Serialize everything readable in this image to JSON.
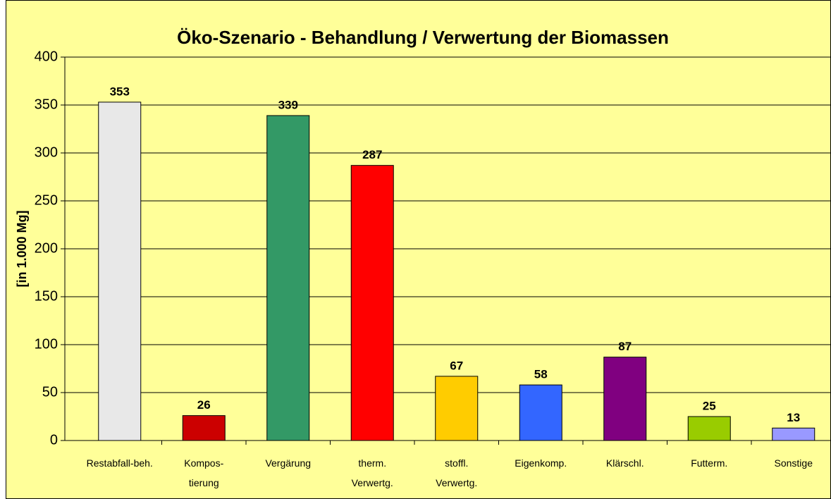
{
  "chart_data": {
    "type": "bar",
    "title": "Öko-Szenario -  Behandlung / Verwertung der Biomassen",
    "y_label": "[in 1.000 Mg]",
    "categories": [
      [
        "Restabfall-beh."
      ],
      [
        "Kompos-",
        "tierung"
      ],
      [
        "Vergärung"
      ],
      [
        "therm.",
        "Verwertg."
      ],
      [
        "stoffl.",
        "Verwertg."
      ],
      [
        "Eigenkomp."
      ],
      [
        "Klärschl."
      ],
      [
        "Futterm."
      ],
      [
        "Sonstige"
      ]
    ],
    "values": [
      353,
      26,
      339,
      287,
      67,
      58,
      87,
      25,
      13
    ],
    "colors": [
      "#e8e8e8",
      "#cc0000",
      "#339966",
      "#ff0000",
      "#ffcc00",
      "#3366ff",
      "#800080",
      "#99cc00",
      "#9999ff"
    ],
    "ylim": [
      0,
      400
    ],
    "yticks": [
      0,
      50,
      100,
      150,
      200,
      250,
      300,
      350,
      400
    ],
    "grid": true
  }
}
